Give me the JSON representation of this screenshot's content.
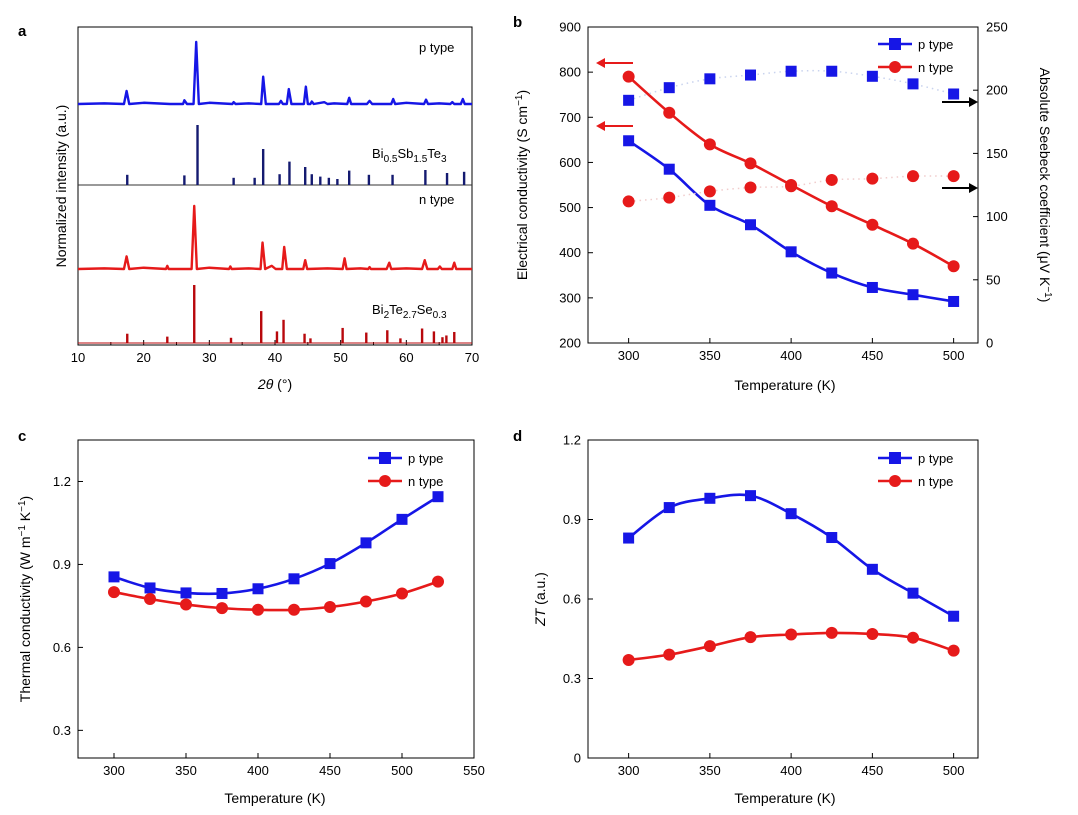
{
  "panels": {
    "a": "a",
    "b": "b",
    "c": "c",
    "d": "d"
  },
  "colors": {
    "p": "#1616e6",
    "n": "#e61a1a",
    "ref_p": "#141a70",
    "ref_n": "#b8080c",
    "axis_red": "#e61a1a"
  },
  "chart_data": [
    {
      "id": "a",
      "type": "line",
      "title": "",
      "xlabel": "2θ (°)",
      "ylabel": "Normalized intensity (a.u.)",
      "xlim": [
        10,
        70
      ],
      "xticks": [
        10,
        20,
        30,
        40,
        50,
        60,
        70
      ],
      "series": [
        {
          "name": "p type",
          "kind": "pattern",
          "x": [
            10,
            14,
            17,
            17.4,
            17.8,
            20,
            24,
            26,
            26.2,
            26.6,
            27.6,
            28,
            28.4,
            30,
            33.5,
            33.7,
            34,
            36,
            37.9,
            38.2,
            38.6,
            40.6,
            40.9,
            41.2,
            41.8,
            42.1,
            42.5,
            44.4,
            44.7,
            45,
            45.4,
            45.6,
            45.9,
            47.5,
            48,
            49,
            51,
            51.3,
            51.6,
            54,
            54.4,
            54.8,
            57.7,
            58,
            58.3,
            60,
            62.7,
            63,
            63.3,
            65,
            66.7,
            67,
            67.3,
            68.3,
            68.6,
            68.9,
            70
          ],
          "y": [
            0.0,
            0.01,
            0.0,
            0.21,
            0.0,
            0.02,
            0.0,
            0.0,
            0.06,
            0.0,
            0.0,
            1.0,
            0.0,
            0.02,
            0.0,
            0.03,
            0.0,
            0.01,
            0.0,
            0.44,
            0.0,
            0.0,
            0.05,
            0.0,
            0.0,
            0.24,
            0.0,
            0.0,
            0.28,
            0.0,
            0.0,
            0.04,
            0.0,
            0.03,
            0.0,
            0.01,
            0.0,
            0.1,
            0.0,
            0.0,
            0.05,
            0.0,
            0.0,
            0.08,
            0.0,
            0.02,
            0.0,
            0.07,
            0.0,
            0.01,
            0.0,
            0.03,
            0.0,
            0.0,
            0.08,
            0.0,
            0.0
          ]
        },
        {
          "name": "Bi0.5Sb1.5Te3",
          "kind": "sticks",
          "x": [
            17.5,
            26.2,
            28.2,
            33.7,
            36.9,
            38.2,
            40.7,
            42.2,
            44.6,
            45.6,
            46.9,
            48.2,
            49.5,
            51.3,
            54.3,
            57.9,
            62.9,
            66.2,
            68.8
          ],
          "y": [
            0.17,
            0.16,
            1.0,
            0.12,
            0.12,
            0.6,
            0.18,
            0.39,
            0.3,
            0.18,
            0.14,
            0.12,
            0.1,
            0.24,
            0.17,
            0.17,
            0.25,
            0.2,
            0.22
          ]
        },
        {
          "name": "n type",
          "kind": "pattern",
          "x": [
            10,
            14,
            17,
            17.4,
            17.8,
            20,
            23.4,
            23.6,
            23.8,
            26,
            27.3,
            27.7,
            28.1,
            30,
            33,
            33.2,
            33.4,
            36,
            37.8,
            38.1,
            38.5,
            39.5,
            40.1,
            40.6,
            41.1,
            41.4,
            41.8,
            44.3,
            44.6,
            44.9,
            48,
            50.3,
            50.6,
            50.9,
            53,
            54.2,
            54.4,
            54.6,
            57,
            57.4,
            57.7,
            60,
            62.4,
            62.8,
            63.2,
            64.8,
            65.1,
            65.4,
            67,
            67.3,
            67.6,
            70
          ],
          "y": [
            0.0,
            0.01,
            0.0,
            0.2,
            0.0,
            0.02,
            0.0,
            0.05,
            0.0,
            0.0,
            0.0,
            1.0,
            0.0,
            0.02,
            0.0,
            0.04,
            0.0,
            0.01,
            0.0,
            0.42,
            0.0,
            0.05,
            0.0,
            0.0,
            0.0,
            0.35,
            0.0,
            0.0,
            0.14,
            0.0,
            0.01,
            0.0,
            0.17,
            0.0,
            0.01,
            0.0,
            0.03,
            0.0,
            0.0,
            0.1,
            0.0,
            0.01,
            0.0,
            0.14,
            0.0,
            0.0,
            0.04,
            0.0,
            0.0,
            0.1,
            0.0,
            0.0
          ]
        },
        {
          "name": "Bi2Te2.7Se0.3",
          "kind": "sticks",
          "x": [
            17.5,
            23.6,
            27.7,
            33.3,
            37.9,
            40.3,
            41.3,
            44.5,
            45.4,
            50.3,
            53.9,
            57.1,
            59.1,
            62.4,
            64.2,
            65.5,
            66.1,
            67.3
          ],
          "y": [
            0.16,
            0.11,
            1.0,
            0.09,
            0.55,
            0.2,
            0.4,
            0.16,
            0.08,
            0.26,
            0.18,
            0.22,
            0.08,
            0.25,
            0.2,
            0.1,
            0.13,
            0.19
          ]
        }
      ],
      "labels": {
        "p_type": "p type",
        "ref_p": "Bi0.5Sb1.5Te3",
        "n_type": "n type",
        "ref_n": "Bi2Te2.7Se0.3"
      }
    },
    {
      "id": "b",
      "type": "line",
      "title": "",
      "xlabel": "Temperature (K)",
      "ylabel": "Electrical conductivity (S cm⁻¹)",
      "y2label": "Absolute Seebeck coefficient (μV K⁻¹)",
      "xlim": [
        275,
        515
      ],
      "ylim": [
        200,
        900
      ],
      "y2lim": [
        0,
        250
      ],
      "xticks": [
        300,
        350,
        400,
        450,
        500
      ],
      "yticks": [
        200,
        300,
        400,
        500,
        600,
        700,
        800,
        900
      ],
      "y2ticks": [
        0,
        50,
        100,
        150,
        200,
        250
      ],
      "legend_placement": "top-right",
      "x": [
        300,
        325,
        350,
        375,
        400,
        425,
        450,
        475,
        500
      ],
      "series": [
        {
          "name": "p type",
          "axis": "left",
          "values": [
            648,
            585,
            505,
            462,
            402,
            355,
            323,
            307,
            292
          ]
        },
        {
          "name": "n type",
          "axis": "left",
          "values": [
            790,
            710,
            640,
            598,
            550,
            503,
            462,
            420,
            370
          ]
        },
        {
          "name": "p type Seebeck",
          "axis": "right",
          "values": [
            192,
            202,
            209,
            212,
            215,
            215,
            211,
            205,
            197
          ]
        },
        {
          "name": "n type Seebeck",
          "axis": "right",
          "values": [
            112,
            115,
            120,
            123,
            124,
            129,
            130,
            132,
            132
          ]
        }
      ],
      "legend": [
        "p type",
        "n type"
      ]
    },
    {
      "id": "c",
      "type": "line",
      "title": "",
      "xlabel": "Temperature (K)",
      "ylabel": "Thermal conductivity (W m⁻¹ K⁻¹)",
      "xlim": [
        275,
        550
      ],
      "ylim": [
        0.2,
        1.35
      ],
      "xticks": [
        300,
        350,
        400,
        450,
        500,
        550
      ],
      "yticks": [
        0.3,
        0.6,
        0.9,
        1.2
      ],
      "legend_placement": "top-right",
      "x": [
        300,
        325,
        350,
        375,
        400,
        425,
        450,
        475,
        500,
        525
      ],
      "series": [
        {
          "name": "p type",
          "values": [
            0.855,
            0.815,
            0.797,
            0.795,
            0.812,
            0.848,
            0.903,
            0.978,
            1.063,
            1.145
          ]
        },
        {
          "name": "n type",
          "values": [
            0.8,
            0.775,
            0.755,
            0.742,
            0.736,
            0.736,
            0.746,
            0.766,
            0.795,
            0.838
          ]
        }
      ],
      "legend": [
        "p type",
        "n type"
      ]
    },
    {
      "id": "d",
      "type": "line",
      "title": "",
      "xlabel": "Temperature (K)",
      "ylabel": "ZT (a.u.)",
      "xlim": [
        275,
        515
      ],
      "ylim": [
        0,
        1.2
      ],
      "xticks": [
        300,
        350,
        400,
        450,
        500
      ],
      "yticks": [
        0,
        0.3,
        0.6,
        0.9,
        1.2
      ],
      "legend_placement": "top-right",
      "x": [
        300,
        325,
        350,
        375,
        400,
        425,
        450,
        475,
        500
      ],
      "series": [
        {
          "name": "p type",
          "values": [
            0.83,
            0.945,
            0.98,
            0.99,
            0.922,
            0.832,
            0.712,
            0.622,
            0.535
          ]
        },
        {
          "name": "n type",
          "values": [
            0.37,
            0.39,
            0.422,
            0.456,
            0.466,
            0.472,
            0.468,
            0.454,
            0.405
          ]
        }
      ],
      "legend": [
        "p type",
        "n type"
      ]
    }
  ]
}
